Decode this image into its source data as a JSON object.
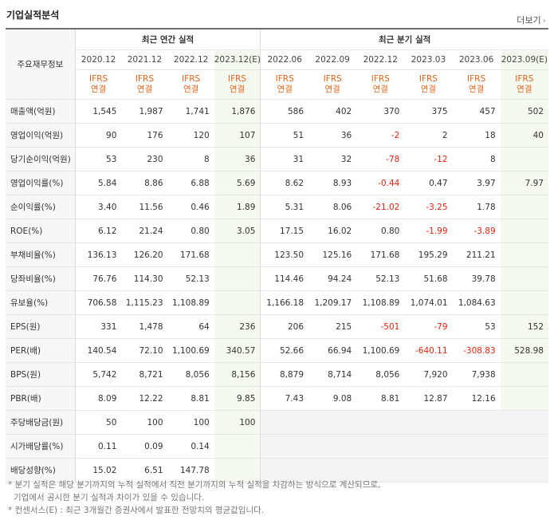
{
  "title": "기업실적분석",
  "more_label": "더보기",
  "header": {
    "row_label": "주요재무정보",
    "annual_group": "최근 연간 실적",
    "quarter_group": "최근 분기 실적",
    "ifrs_top": "IFRS",
    "ifrs_bottom": "연결",
    "periods": [
      "2020.12",
      "2021.12",
      "2022.12",
      "2023.12(E)",
      "2022.06",
      "2022.09",
      "2022.12",
      "2023.03",
      "2023.06",
      "2023.09(E)"
    ]
  },
  "rows": [
    {
      "label": "매출액(억원)",
      "values": [
        "1,545",
        "1,987",
        "1,741",
        "1,876",
        "586",
        "402",
        "370",
        "375",
        "457",
        "502"
      ]
    },
    {
      "label": "영업이익(억원)",
      "values": [
        "90",
        "176",
        "120",
        "107",
        "51",
        "36",
        "-2",
        "2",
        "18",
        "40"
      ]
    },
    {
      "label": "당기순이익(억원)",
      "values": [
        "53",
        "230",
        "8",
        "36",
        "31",
        "32",
        "-78",
        "-12",
        "8",
        ""
      ]
    },
    {
      "label": "영업이익률(%)",
      "values": [
        "5.84",
        "8.86",
        "6.88",
        "5.69",
        "8.62",
        "8.93",
        "-0.44",
        "0.47",
        "3.97",
        "7.97"
      ]
    },
    {
      "label": "순이익률(%)",
      "values": [
        "3.40",
        "11.56",
        "0.46",
        "1.89",
        "5.31",
        "8.06",
        "-21.02",
        "-3.25",
        "1.78",
        ""
      ]
    },
    {
      "label": "ROE(%)",
      "values": [
        "6.12",
        "21.24",
        "0.80",
        "3.05",
        "17.15",
        "16.02",
        "0.80",
        "-1.99",
        "-3.89",
        ""
      ]
    },
    {
      "label": "부채비율(%)",
      "values": [
        "136.13",
        "126.20",
        "171.68",
        "",
        "123.50",
        "125.16",
        "171.68",
        "195.29",
        "211.21",
        ""
      ]
    },
    {
      "label": "당좌비율(%)",
      "values": [
        "76.76",
        "114.30",
        "52.13",
        "",
        "114.46",
        "94.24",
        "52.13",
        "51.68",
        "39.78",
        ""
      ]
    },
    {
      "label": "유보율(%)",
      "values": [
        "706.58",
        "1,115.23",
        "1,108.89",
        "",
        "1,166.18",
        "1,209.17",
        "1,108.89",
        "1,074.01",
        "1,084.63",
        ""
      ]
    },
    {
      "label": "EPS(원)",
      "values": [
        "331",
        "1,478",
        "64",
        "236",
        "206",
        "215",
        "-501",
        "-79",
        "53",
        "152"
      ]
    },
    {
      "label": "PER(배)",
      "values": [
        "140.54",
        "72.10",
        "1,100.69",
        "340.57",
        "52.66",
        "66.94",
        "1,100.69",
        "-640.11",
        "-308.83",
        "528.98"
      ]
    },
    {
      "label": "BPS(원)",
      "values": [
        "5,742",
        "8,721",
        "8,056",
        "8,156",
        "8,879",
        "8,714",
        "8,056",
        "7,920",
        "7,938",
        ""
      ]
    },
    {
      "label": "PBR(배)",
      "values": [
        "8.09",
        "12.22",
        "8.81",
        "9.85",
        "7.43",
        "9.08",
        "8.81",
        "12.87",
        "12.16",
        ""
      ]
    },
    {
      "label": "주당배당금(원)",
      "values": [
        "50",
        "100",
        "100",
        "100",
        "",
        "",
        "",
        "",
        "",
        ""
      ]
    },
    {
      "label": "시가배당률(%)",
      "values": [
        "0.11",
        "0.09",
        "0.14",
        "",
        "",
        "",
        "",
        "",
        "",
        ""
      ]
    },
    {
      "label": "배당성향(%)",
      "values": [
        "15.02",
        "6.51",
        "147.78",
        "",
        "",
        "",
        "",
        "",
        "",
        ""
      ]
    }
  ],
  "notes": [
    "* 분기 실적은 해당 분기까지의 누적 실적에서 직전 분기까지의 누적 실적을 차감하는 방식으로 계산되므로,",
    "기업에서 공시한 분기 실적과 차이가 있을 수 있습니다.",
    "* 컨센서스(E) : 최근 3개월간 증권사에서 발표한 전망치의 평균값입니다."
  ],
  "colors": {
    "ifrs": "#e0641a",
    "negative": "#e4230f",
    "estimate_bg": "#f5f9ef",
    "estimate_mark": "#6b9a2e"
  }
}
